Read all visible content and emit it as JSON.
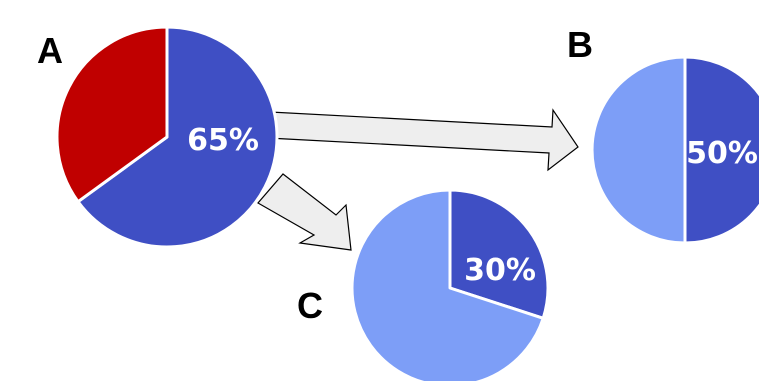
{
  "chart_data": [
    {
      "type": "pie",
      "panel": "A",
      "slices": [
        {
          "value": 65,
          "color": "#3F4FC4"
        },
        {
          "value": 35,
          "color": "#C00000"
        }
      ],
      "label": "65%"
    },
    {
      "type": "pie",
      "panel": "B",
      "slices": [
        {
          "value": 50,
          "color": "#3F4FC4"
        },
        {
          "value": 50,
          "color": "#7D9EF7"
        }
      ],
      "label": "50%"
    },
    {
      "type": "pie",
      "panel": "C",
      "slices": [
        {
          "value": 30,
          "color": "#3F4FC4"
        },
        {
          "value": 70,
          "color": "#7D9EF7"
        }
      ],
      "label": "30%"
    }
  ],
  "arrows": {
    "fill": "#EEEEEE",
    "stroke": "#000000"
  }
}
